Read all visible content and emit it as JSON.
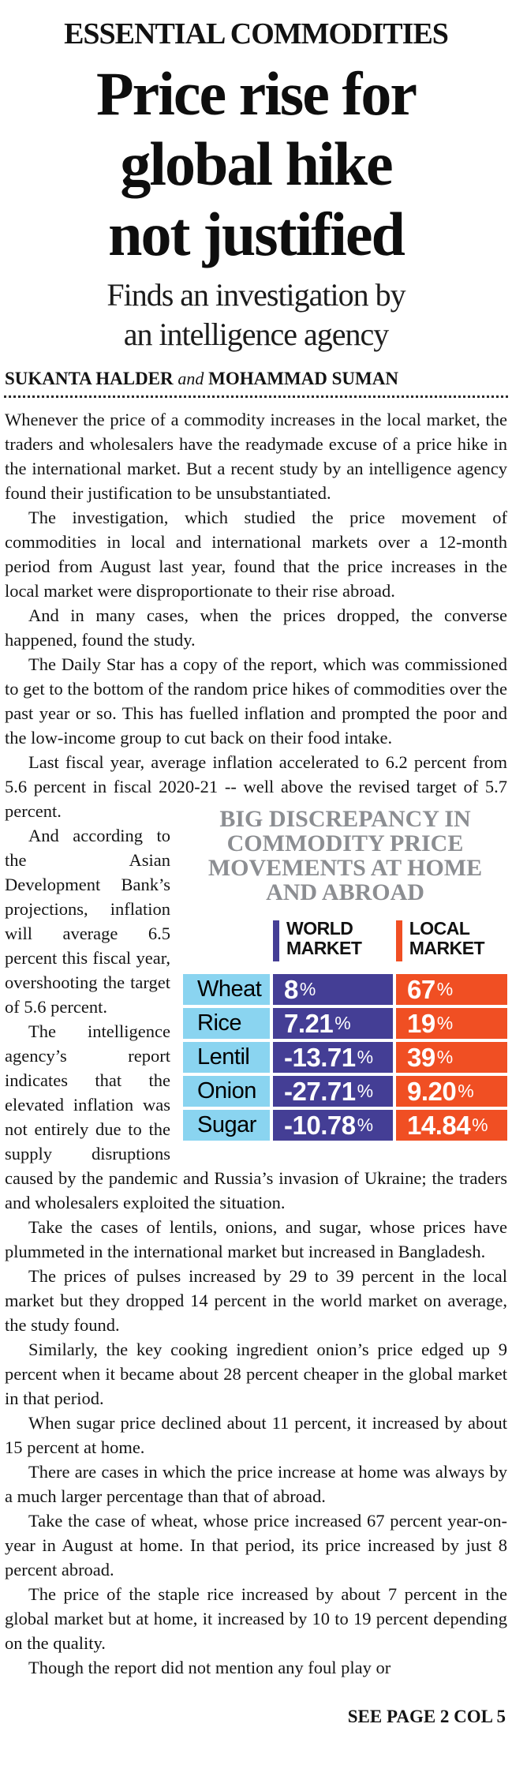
{
  "kicker": "ESSENTIAL COMMODITIES",
  "headline_lines": [
    "Price rise for",
    "global hike",
    "not justified"
  ],
  "subhead_lines": [
    "Finds an investigation by",
    "an intelligence agency"
  ],
  "byline": {
    "author1": "SUKANTA HALDER",
    "conjunction": "and",
    "author2": "MOHAMMAD SUMAN"
  },
  "body": {
    "paragraphs": [
      "Whenever the price of a commodity increases in the local market, the traders and wholesalers have the readymade excuse of a price hike in the international market. But a recent study by an intelligence agency found their justification to be unsubstantiated.",
      "The investigation, which studied the price movement of commodities in local and international markets over a 12-month period from August last year, found that the price increases in the local market were disproportionate to their rise abroad.",
      "And in many cases, when the prices dropped, the converse happened, found the study.",
      "The Daily Star has a copy of the report, which was commissioned to get to the bottom of the random price hikes of commodities over the past year or so. This has fuelled inflation and prompted the poor and the low-income group to cut back on their food intake."
    ],
    "para5_before": "Last fiscal year, average inflation accelerated to 6.2 percent from 5.6 percent in fiscal 2020-21 -- well above ",
    "para5_after": "the revised target of 5.7 percent.",
    "paragraphs_after": [
      "And according to the Asian Development Bank’s projections, inflation will average 6.5 percent this fiscal year, overshooting the target of 5.6 percent.",
      "The intelligence agency’s report indicates that the elevated inflation was not entirely due to the supply disruptions caused by the pandemic and Russia’s invasion of Ukraine; the traders and wholesalers exploited the situation.",
      "Take the cases of lentils, onions, and sugar, whose prices have plummeted in the international market but increased in Bangladesh.",
      "The prices of pulses increased by 29 to 39 percent in the local market but they dropped 14 percent in the world market on average, the study found.",
      "Similarly, the key cooking ingredient onion’s price edged up 9 percent when it became about 28 percent cheaper in the global market in that period.",
      "When sugar price declined about 11 percent, it increased by about 15 percent at home.",
      "There are cases in which the price increase at home was always by a much larger percentage than that of abroad.",
      "Take the case of wheat, whose price increased 67 percent year-on-year in August at home. In that period, its price increased by just 8 percent abroad.",
      "The price of the staple rice increased by about 7 percent in the global market but at home, it increased by 10 to 19 percent depending on the quality.",
      "Though the report did not mention any foul play or"
    ]
  },
  "footer": {
    "see_page": "SEE PAGE 2 COL 5"
  },
  "chart_data": {
    "type": "table",
    "title": "BIG DISCREPANCY IN COMMODITY PRICE MOVEMENTS AT HOME AND ABROAD",
    "columns": [
      "WORLD MARKET",
      "LOCAL MARKET"
    ],
    "categories": [
      "Wheat",
      "Rice",
      "Lentil",
      "Onion",
      "Sugar"
    ],
    "series": [
      {
        "name": "WORLD MARKET",
        "values": [
          8,
          7.21,
          -13.71,
          -27.71,
          -10.78
        ]
      },
      {
        "name": "LOCAL MARKET",
        "values": [
          67,
          19,
          39,
          9.2,
          14.84
        ]
      }
    ],
    "unit": "%",
    "percent_sign": "%",
    "rows": [
      {
        "commodity": "Wheat",
        "world": "8",
        "local": "67"
      },
      {
        "commodity": "Rice",
        "world": "7.21",
        "local": "19"
      },
      {
        "commodity": "Lentil",
        "world": "-13.71",
        "local": "39"
      },
      {
        "commodity": "Onion",
        "world": "-27.71",
        "local": "9.20"
      },
      {
        "commodity": "Sugar",
        "world": "-10.78",
        "local": "14.84"
      }
    ],
    "colors": {
      "world_market": "#443e95",
      "local_market": "#f04f23",
      "commodity_label_bg": "#8ad4f0",
      "title_gray": "#8c8e92"
    },
    "legend_position": "top",
    "grid": false
  }
}
